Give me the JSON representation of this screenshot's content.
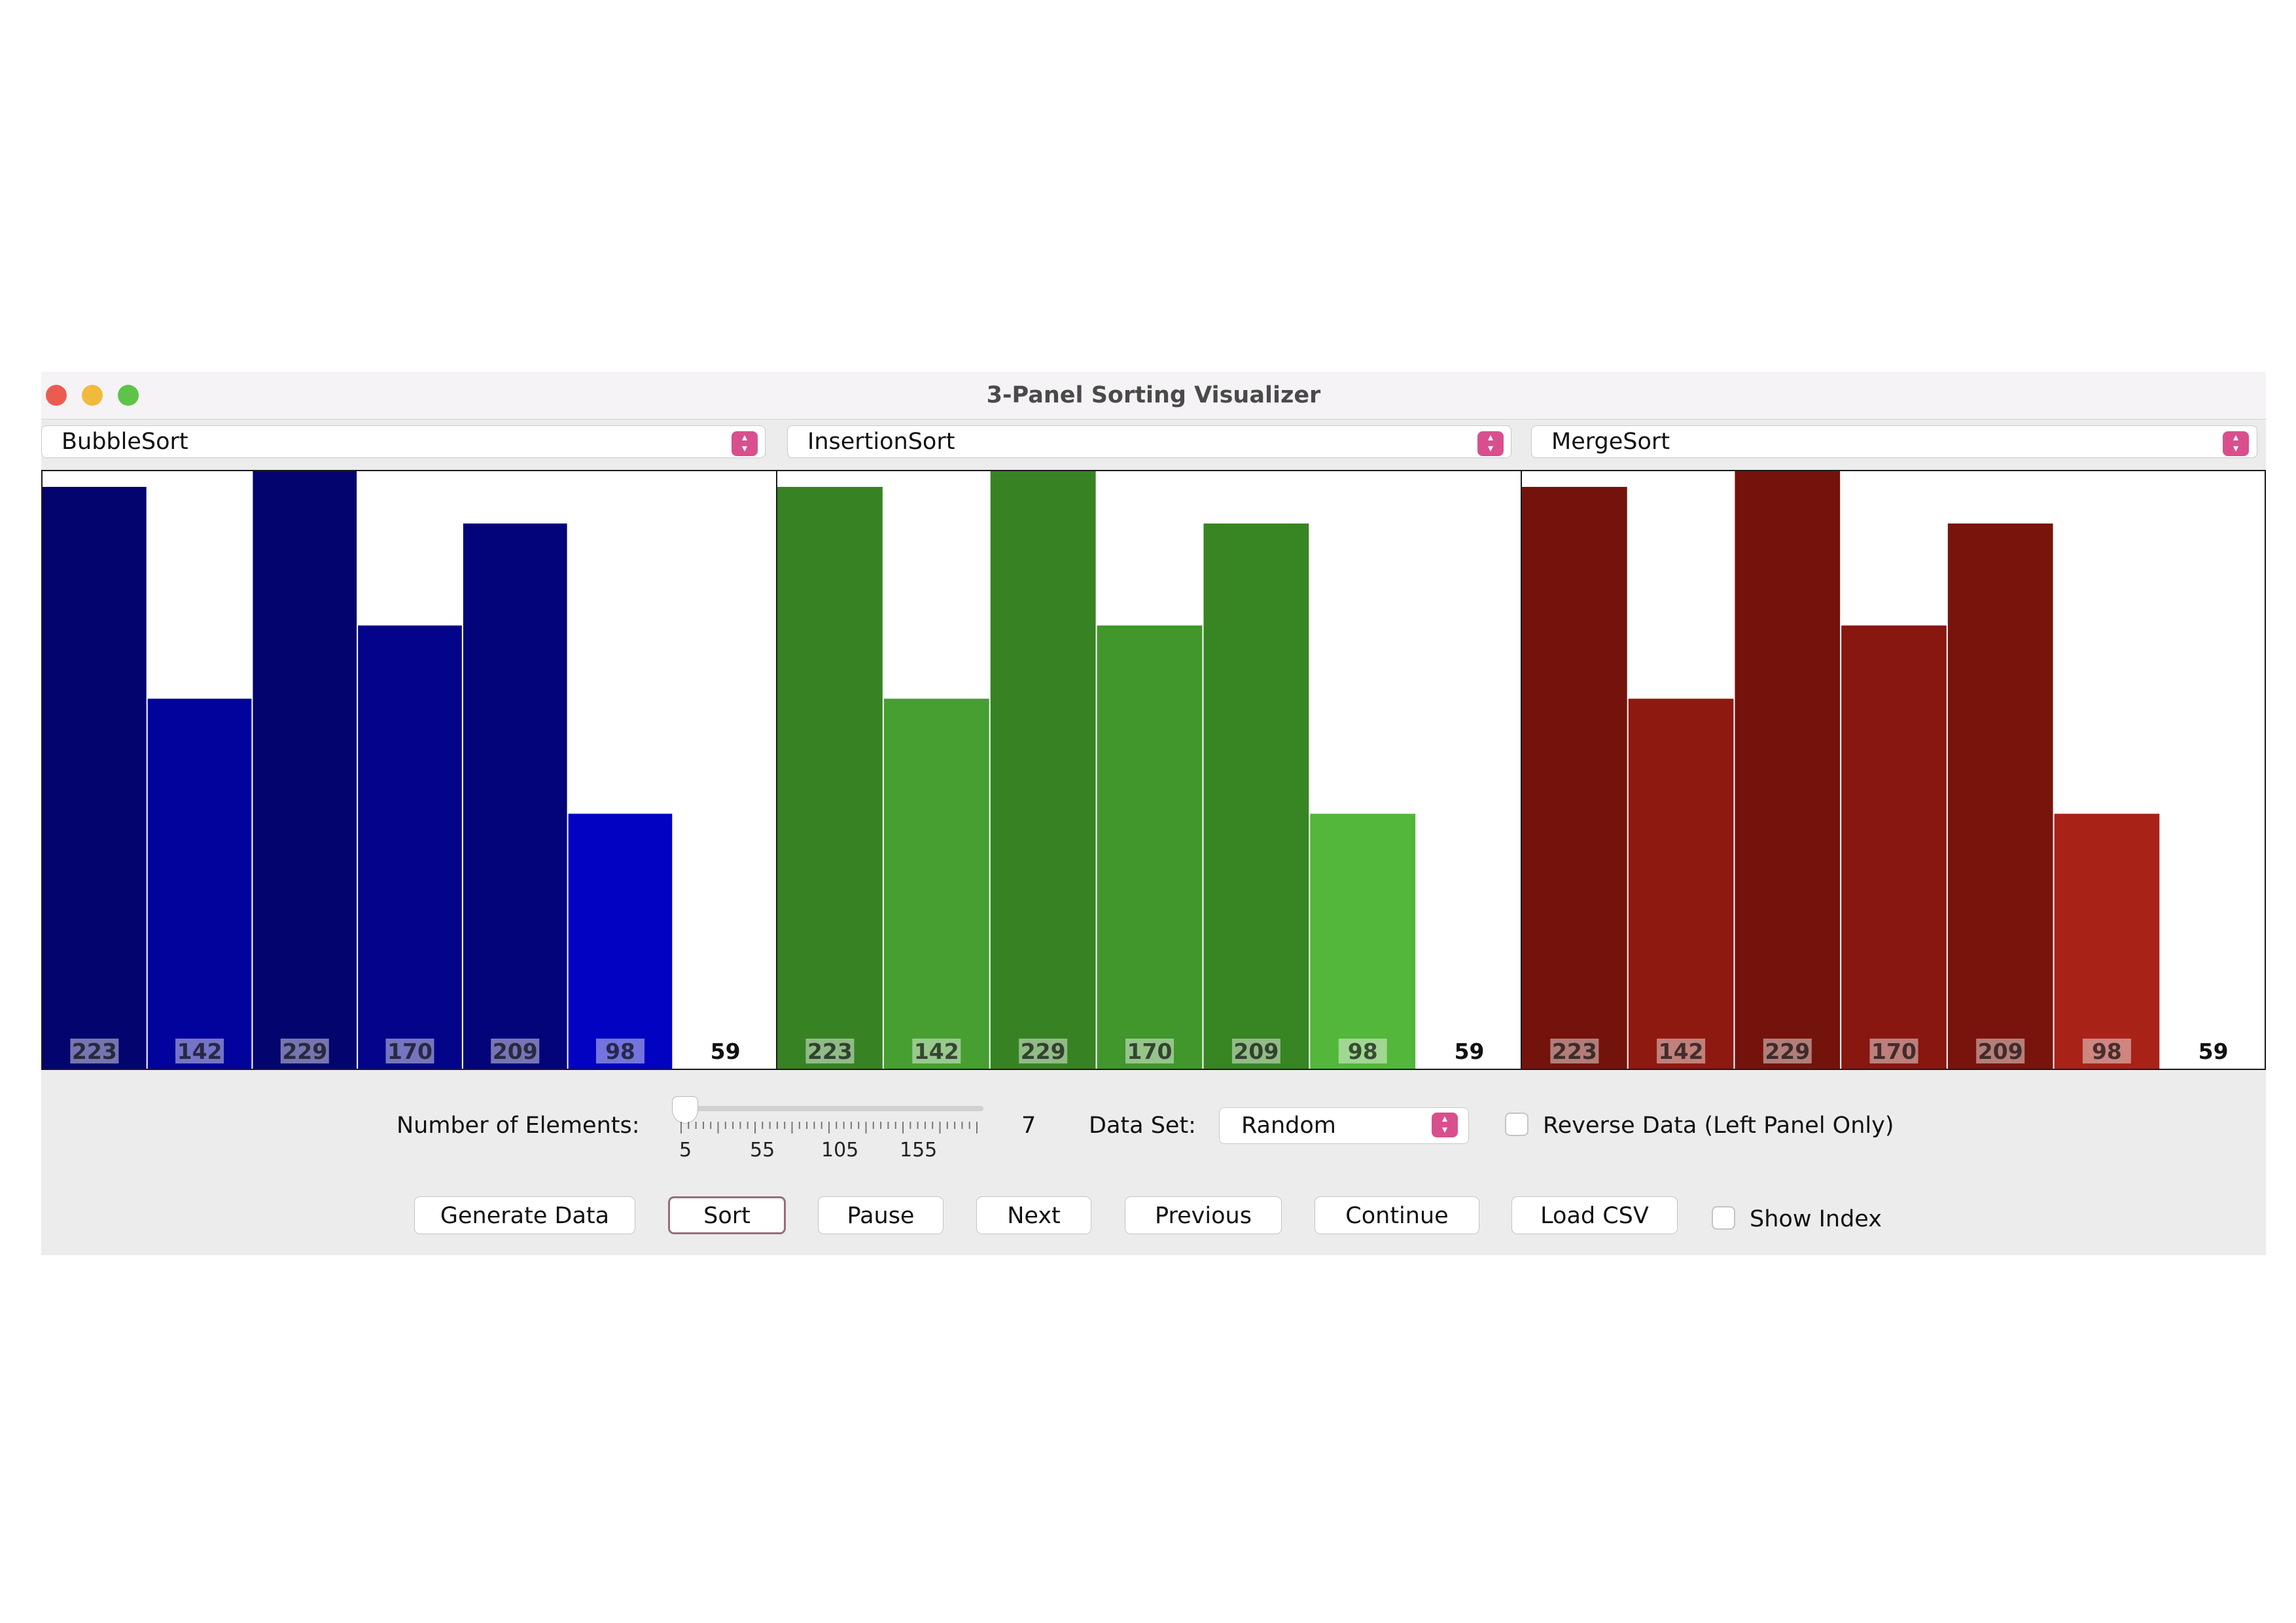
{
  "window": {
    "title": "3-Panel Sorting Visualizer"
  },
  "panels": [
    {
      "algorithm": "BubbleSort",
      "values": [
        223,
        142,
        229,
        170,
        209,
        98,
        59
      ],
      "colors": [
        "#04046f",
        "#02029c",
        "#04046f",
        "#04048a",
        "#04047a",
        "#0202c2",
        "#ffffff"
      ]
    },
    {
      "algorithm": "InsertionSort",
      "values": [
        223,
        142,
        229,
        170,
        209,
        98,
        59
      ],
      "colors": [
        "#378323",
        "#469f30",
        "#378323",
        "#41962c",
        "#378523",
        "#52b73a",
        "#ffffff"
      ]
    },
    {
      "algorithm": "MergeSort",
      "values": [
        223,
        142,
        229,
        170,
        209,
        98,
        59
      ],
      "colors": [
        "#74130b",
        "#8e1911",
        "#74130b",
        "#87170f",
        "#78140c",
        "#a82218",
        "#ffffff"
      ]
    }
  ],
  "controls": {
    "num_elements_label": "Number of Elements:",
    "num_elements_value": "7",
    "slider": {
      "min": 5,
      "max": 200,
      "value": 7,
      "tick_labels": [
        "5",
        "55",
        "105",
        "155"
      ]
    },
    "data_set_label": "Data Set:",
    "data_set_value": "Random",
    "reverse_label": "Reverse Data (Left Panel Only)",
    "show_index_label": "Show Index"
  },
  "buttons": {
    "generate": "Generate Data",
    "sort": "Sort",
    "pause": "Pause",
    "next": "Next",
    "previous": "Previous",
    "continue": "Continue",
    "load_csv": "Load CSV"
  }
}
